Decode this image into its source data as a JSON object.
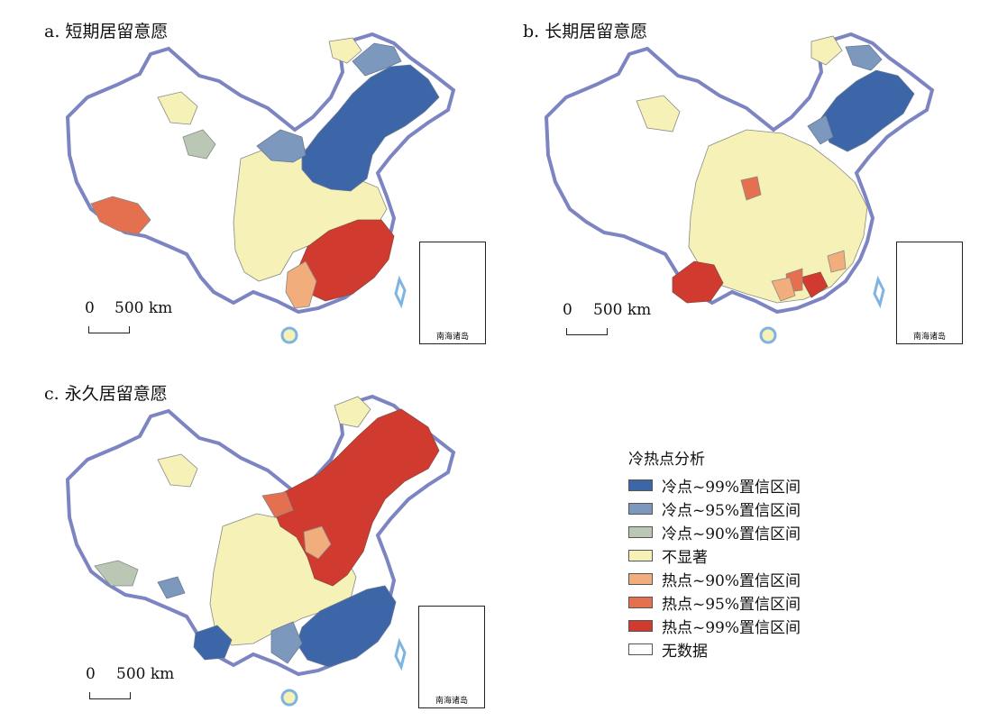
{
  "panels": [
    {
      "id": "a",
      "title": "a. 短期居留意愿"
    },
    {
      "id": "b",
      "title": "b. 长期居留意愿"
    },
    {
      "id": "c",
      "title": "c. 永久居留意愿"
    }
  ],
  "scale": {
    "zero": "0",
    "distance": "500 km"
  },
  "inset_label": "南海诸岛",
  "legend": {
    "title": "冷热点分析",
    "items": [
      {
        "label": "冷点~99%置信区间",
        "color": "#3c66a8"
      },
      {
        "label": "冷点~95%置信区间",
        "color": "#7d98bd"
      },
      {
        "label": "冷点~90%置信区间",
        "color": "#b9c7b4"
      },
      {
        "label": "不显著",
        "color": "#f6f1b7"
      },
      {
        "label": "热点~90%置信区间",
        "color": "#f2ad7d"
      },
      {
        "label": "热点~95%置信区间",
        "color": "#e5704f"
      },
      {
        "label": "热点~99%置信区间",
        "color": "#d13a2f"
      },
      {
        "label": "无数据",
        "color": "#ffffff"
      }
    ]
  },
  "colors": {
    "border": "#7c84c2",
    "coast": "#7fb3e0"
  }
}
